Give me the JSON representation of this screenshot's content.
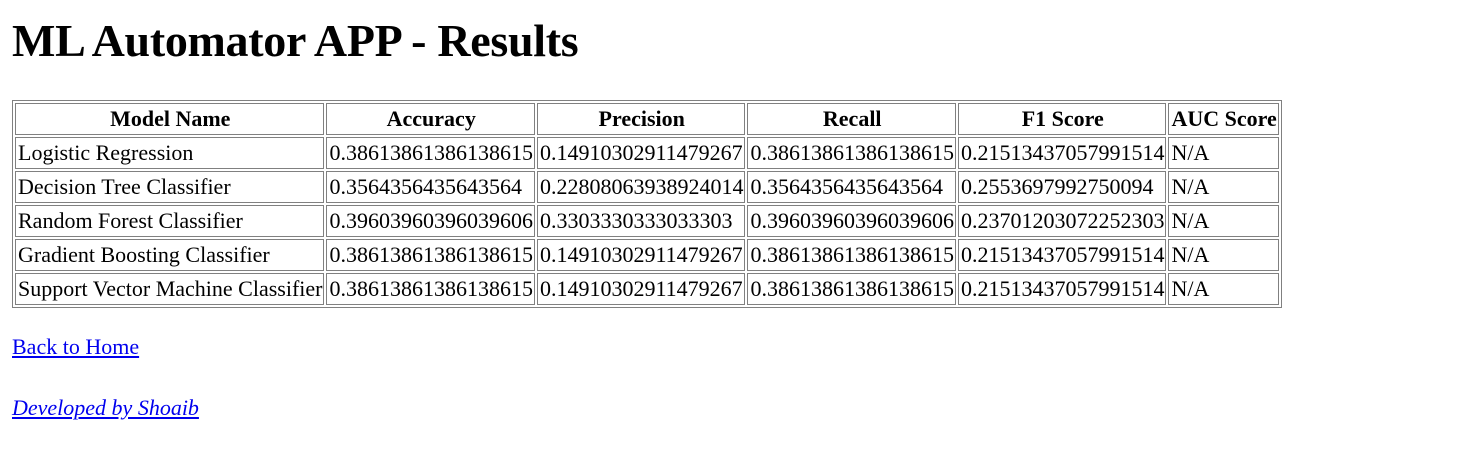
{
  "page": {
    "title": "ML Automator APP - Results"
  },
  "table": {
    "headers": [
      "Model Name",
      "Accuracy",
      "Precision",
      "Recall",
      "F1 Score",
      "AUC Score"
    ],
    "rows": [
      [
        "Logistic Regression",
        "0.38613861386138615",
        "0.14910302911479267",
        "0.38613861386138615",
        "0.21513437057991514",
        "N/A"
      ],
      [
        "Decision Tree Classifier",
        "0.3564356435643564",
        "0.22808063938924014",
        "0.3564356435643564",
        "0.2553697992750094",
        "N/A"
      ],
      [
        "Random Forest Classifier",
        "0.39603960396039606",
        "0.3303330333033303",
        "0.39603960396039606",
        "0.23701203072252303",
        "N/A"
      ],
      [
        "Gradient Boosting Classifier",
        "0.38613861386138615",
        "0.14910302911479267",
        "0.38613861386138615",
        "0.21513437057991514",
        "N/A"
      ],
      [
        "Support Vector Machine Classifier",
        "0.38613861386138615",
        "0.14910302911479267",
        "0.38613861386138615",
        "0.21513437057991514",
        "N/A"
      ]
    ]
  },
  "links": {
    "home": "Back to Home",
    "developer": "Developed by Shoaib"
  },
  "colors": {
    "link": "#0000ee",
    "border": "#808080",
    "background": "#ffffff"
  }
}
